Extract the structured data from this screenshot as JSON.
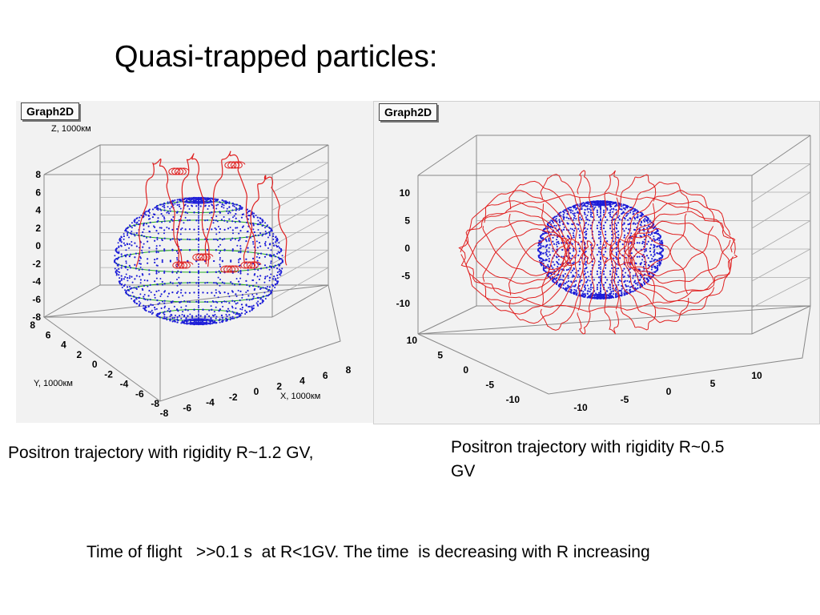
{
  "title": "Quasi-trapped particles:",
  "captions": {
    "left": "Positron trajectory with rigidity R~1.2 GV,",
    "right": "Positron trajectory with rigidity R~0.5 GV"
  },
  "footer": "Time of flight   >>0.1 s  at R<1GV. The time  is decreasing with R increasing",
  "colors": {
    "trajectory": "#e02020",
    "earth_points": "#1c1cd8",
    "earth_grid": "#22aa22",
    "axes": "#888888",
    "panel_bg": "#f2f2f2"
  },
  "chart_data": [
    {
      "type": "scatter",
      "panel_label": "Graph2D",
      "zlabel": "Z, 1000км",
      "ylabel": "Y, 1000км",
      "xlabel": "X, 1000км",
      "z_ticks": [
        "8",
        "6",
        "4",
        "2",
        "0",
        "-2",
        "-4",
        "-6",
        "-8"
      ],
      "y_ticks": [
        "8",
        "6",
        "4",
        "2",
        "0",
        "-2",
        "-4",
        "-6",
        "-8"
      ],
      "x_ticks": [
        "-8",
        "-6",
        "-4",
        "-2",
        "0",
        "2",
        "4",
        "6",
        "8"
      ],
      "series": [
        {
          "name": "",
          "kind": "trajectory",
          "description_shape": "lobes"
        },
        {
          "name": "",
          "kind": "earth",
          "radius": 6.4
        }
      ]
    },
    {
      "type": "scatter",
      "panel_label": "Graph2D",
      "z_ticks": [
        "10",
        "5",
        "0",
        "-5",
        "-10"
      ],
      "y_ticks": [
        "10",
        "5",
        "0",
        "-5",
        "-10"
      ],
      "x_ticks": [
        "-10",
        "-5",
        "0",
        "5",
        "10"
      ],
      "series": [
        {
          "name": "",
          "kind": "trajectory",
          "description_shape": "torus"
        },
        {
          "name": "",
          "kind": "earth",
          "radius": 6.4
        }
      ]
    }
  ]
}
